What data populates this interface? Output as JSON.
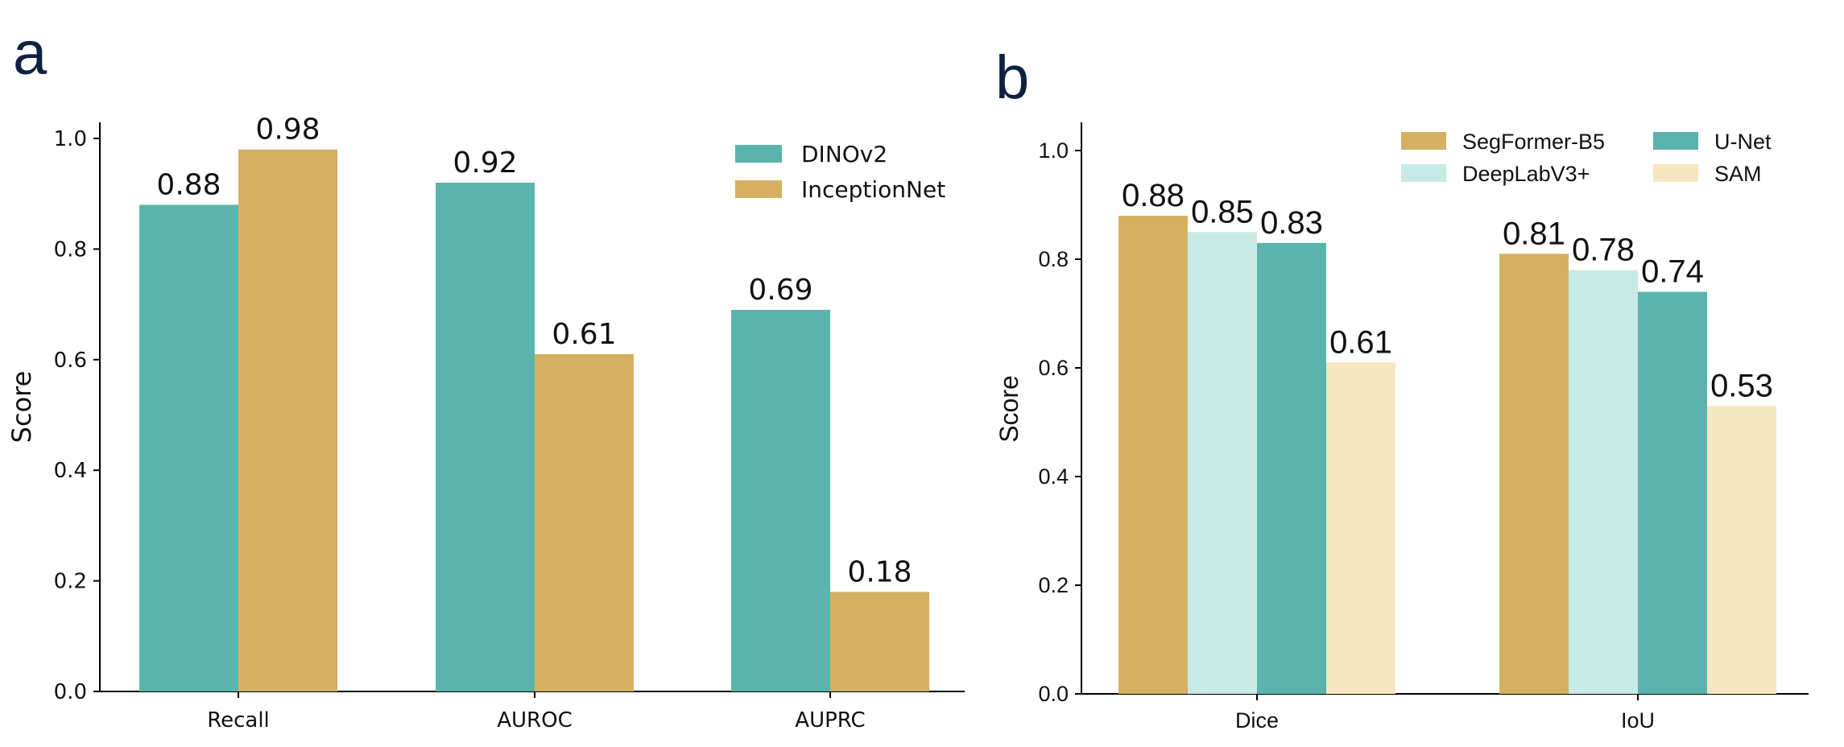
{
  "figure": {
    "panel_a_letter": "a",
    "panel_b_letter": "b"
  },
  "chart_data": [
    {
      "type": "bar",
      "panel": "a",
      "categories": [
        "Recall",
        "AUROC",
        "AUPRC"
      ],
      "series": [
        {
          "name": "DINOv2",
          "values": [
            0.88,
            0.92,
            0.69
          ],
          "labels": [
            "0.88",
            "0.92",
            "0.69"
          ],
          "color": "#5bb4ab"
        },
        {
          "name": "InceptionNet",
          "values": [
            0.98,
            0.61,
            0.18
          ],
          "labels": [
            "0.98",
            "0.61",
            "0.18"
          ],
          "color": "#d6b062"
        }
      ],
      "ylabel": "Score",
      "ylim": [
        0,
        1.0
      ],
      "yticks": [
        "0.0",
        "0.2",
        "0.4",
        "0.6",
        "0.8",
        "1.0"
      ],
      "legend_position": "top-right",
      "grid": false
    },
    {
      "type": "bar",
      "panel": "b",
      "categories": [
        "Dice",
        "IoU"
      ],
      "series": [
        {
          "name": "SegFormer-B5",
          "values": [
            0.88,
            0.81
          ],
          "labels": [
            "0.88",
            "0.81"
          ],
          "color": "#d6b062"
        },
        {
          "name": "DeepLabV3+",
          "values": [
            0.85,
            0.78
          ],
          "labels": [
            "0.85",
            "0.78"
          ],
          "color": "#c8eae4"
        },
        {
          "name": "U-Net",
          "values": [
            0.83,
            0.74
          ],
          "labels": [
            "0.83",
            "0.74"
          ],
          "color": "#5bb4ab"
        },
        {
          "name": "SAM",
          "values": [
            0.61,
            0.53
          ],
          "labels": [
            "0.61",
            "0.53"
          ],
          "color": "#f5e7c1"
        }
      ],
      "ylabel": "Score",
      "ylim": [
        0,
        1.05
      ],
      "yticks": [
        "0.0",
        "0.2",
        "0.4",
        "0.6",
        "0.8",
        "1.0"
      ],
      "legend_position": "top-right",
      "legend_columns": 2,
      "grid": false
    }
  ]
}
